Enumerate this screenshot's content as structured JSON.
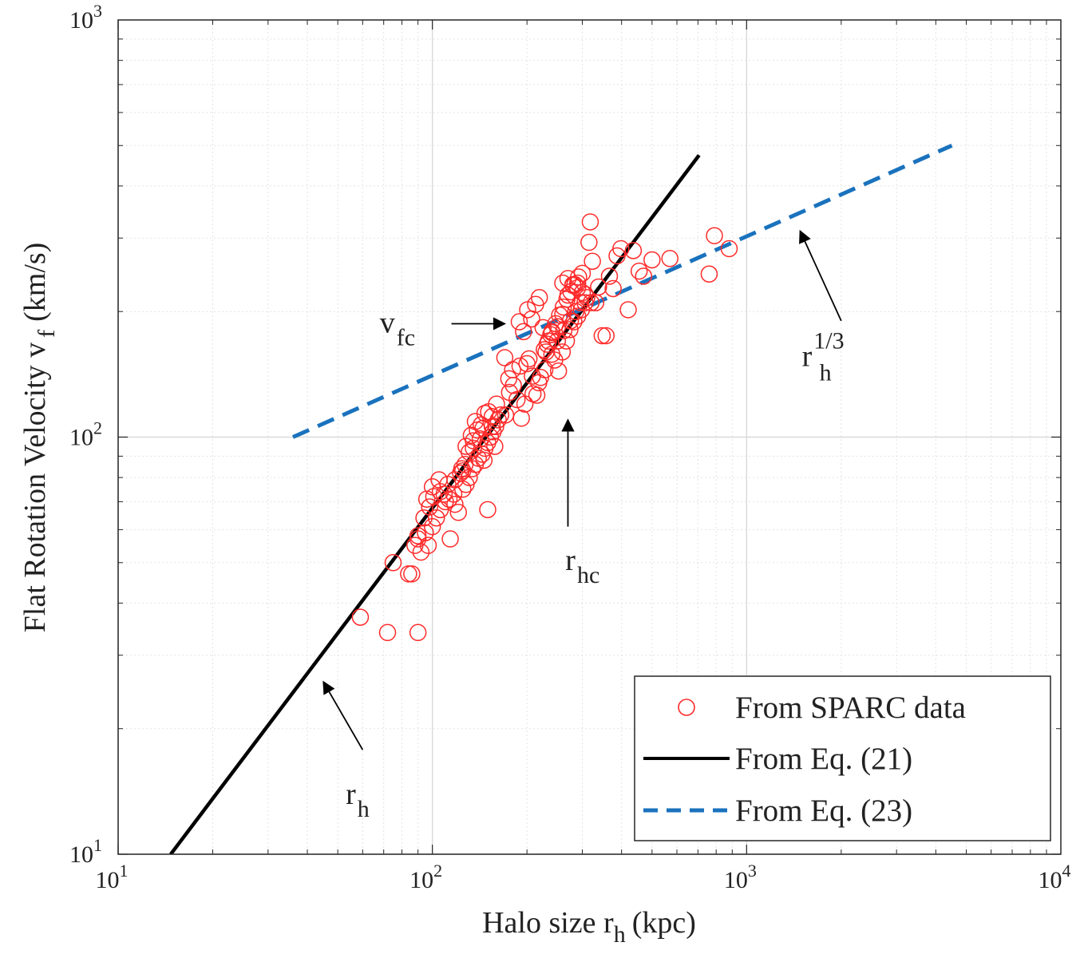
{
  "chart_data": {
    "type": "scatter",
    "xlabel": "Halo size r",
    "xlabel_sub": "h",
    "xlabel_unit": "(kpc)",
    "ylabel": "Flat Rotation Velocity v",
    "ylabel_sub": "f",
    "ylabel_unit": "(km/s)",
    "x_scale": "log",
    "y_scale": "log",
    "xlim": [
      10,
      10000
    ],
    "ylim": [
      10,
      1000
    ],
    "grid": true,
    "legend_position": "bottom-right",
    "x_ticks": [
      {
        "base": "10",
        "exp": "1",
        "value": 10
      },
      {
        "base": "10",
        "exp": "2",
        "value": 100
      },
      {
        "base": "10",
        "exp": "3",
        "value": 1000
      },
      {
        "base": "10",
        "exp": "4",
        "value": 10000
      }
    ],
    "y_ticks": [
      {
        "base": "10",
        "exp": "1",
        "value": 10
      },
      {
        "base": "10",
        "exp": "2",
        "value": 100
      },
      {
        "base": "10",
        "exp": "3",
        "value": 1000
      }
    ],
    "series": [
      {
        "name": "From SPARC data",
        "kind": "scatter",
        "color": "#ff2a2a",
        "points": [
          [
            59,
            37
          ],
          [
            72,
            34
          ],
          [
            90,
            34
          ],
          [
            75,
            50
          ],
          [
            84,
            47
          ],
          [
            86,
            47
          ],
          [
            88,
            55
          ],
          [
            90,
            57
          ],
          [
            92,
            53
          ],
          [
            95,
            59
          ],
          [
            97,
            55
          ],
          [
            100,
            61
          ],
          [
            103,
            64
          ],
          [
            106,
            67
          ],
          [
            110,
            70
          ],
          [
            113,
            71
          ],
          [
            117,
            73
          ],
          [
            121,
            66
          ],
          [
            125,
            75
          ],
          [
            128,
            77
          ],
          [
            131,
            80
          ],
          [
            134,
            84
          ],
          [
            137,
            86
          ],
          [
            140,
            89
          ],
          [
            144,
            91
          ],
          [
            147,
            94
          ],
          [
            150,
            97
          ],
          [
            153,
            100
          ],
          [
            156,
            103
          ],
          [
            159,
            106
          ],
          [
            162,
            110
          ],
          [
            165,
            113
          ],
          [
            96,
            71
          ],
          [
            100,
            76
          ],
          [
            105,
            79
          ],
          [
            109,
            73
          ],
          [
            114,
            57
          ],
          [
            118,
            69
          ],
          [
            123,
            82
          ],
          [
            127,
            86
          ],
          [
            131,
            92
          ],
          [
            135,
            98
          ],
          [
            139,
            104
          ],
          [
            143,
            107
          ],
          [
            147,
            114
          ],
          [
            151,
            115
          ],
          [
            124,
            84
          ],
          [
            128,
            95
          ],
          [
            133,
            101
          ],
          [
            137,
            109
          ],
          [
            142,
            99
          ],
          [
            146,
            88
          ],
          [
            150,
            67
          ],
          [
            155,
            106
          ],
          [
            158,
            95
          ],
          [
            171,
            113
          ],
          [
            176,
            128
          ],
          [
            181,
            133
          ],
          [
            186,
            123
          ],
          [
            192,
            111
          ],
          [
            197,
            120
          ],
          [
            203,
            154
          ],
          [
            209,
            127
          ],
          [
            215,
            126
          ],
          [
            221,
            139
          ],
          [
            227,
            162
          ],
          [
            234,
            170
          ],
          [
            240,
            179
          ],
          [
            247,
            187
          ],
          [
            254,
            196
          ],
          [
            261,
            205
          ],
          [
            268,
            214
          ],
          [
            276,
            223
          ],
          [
            284,
            232
          ],
          [
            292,
            242
          ],
          [
            300,
            247
          ],
          [
            189,
            189
          ],
          [
            195,
            179
          ],
          [
            201,
            202
          ],
          [
            207,
            192
          ],
          [
            213,
            208
          ],
          [
            219,
            216
          ],
          [
            225,
            183
          ],
          [
            232,
            167
          ],
          [
            238,
            176
          ],
          [
            245,
            153
          ],
          [
            252,
            144
          ],
          [
            259,
            160
          ],
          [
            267,
            170
          ],
          [
            274,
            181
          ],
          [
            282,
            189
          ],
          [
            290,
            195
          ],
          [
            298,
            202
          ],
          [
            306,
            210
          ],
          [
            315,
            293
          ],
          [
            318,
            328
          ],
          [
            323,
            264
          ],
          [
            331,
            210
          ],
          [
            338,
            229
          ],
          [
            347,
            175
          ],
          [
            357,
            175
          ],
          [
            366,
            243
          ],
          [
            376,
            227
          ],
          [
            387,
            272
          ],
          [
            398,
            283
          ],
          [
            420,
            202
          ],
          [
            436,
            280
          ],
          [
            455,
            250
          ],
          [
            470,
            243
          ],
          [
            500,
            266
          ],
          [
            570,
            268
          ],
          [
            760,
            246
          ],
          [
            790,
            304
          ],
          [
            880,
            283
          ],
          [
            300,
            222
          ],
          [
            290,
            234
          ],
          [
            280,
            231
          ],
          [
            270,
            219
          ],
          [
            260,
            197
          ],
          [
            250,
            184
          ],
          [
            240,
            178
          ],
          [
            230,
            160
          ],
          [
            170,
            155
          ],
          [
            175,
            138
          ],
          [
            160,
            120
          ],
          [
            155,
            112
          ],
          [
            145,
            105
          ],
          [
            135,
            94
          ],
          [
            125,
            83
          ],
          [
            118,
            79
          ],
          [
            112,
            77
          ],
          [
            106,
            74
          ],
          [
            101,
            72
          ],
          [
            98,
            68
          ],
          [
            94,
            64
          ],
          [
            90,
            58
          ],
          [
            180,
            145
          ],
          [
            190,
            148
          ],
          [
            200,
            150
          ],
          [
            208,
            140
          ],
          [
            218,
            135
          ],
          [
            228,
            145
          ],
          [
            240,
            158
          ],
          [
            250,
            170
          ],
          [
            262,
            180
          ],
          [
            275,
            190
          ],
          [
            286,
            200
          ],
          [
            296,
            210
          ],
          [
            306,
            220
          ],
          [
            260,
            234
          ],
          [
            270,
            240
          ],
          [
            280,
            232
          ],
          [
            290,
            228
          ],
          [
            310,
            216
          ],
          [
            320,
            210
          ]
        ]
      },
      {
        "name": "From Eq. (21)",
        "kind": "line",
        "style": "solid",
        "color": "#000000",
        "x": [
          14.7,
          706
        ],
        "y": [
          10,
          474
        ]
      },
      {
        "name": "From Eq. (23)",
        "kind": "line",
        "style": "dashed",
        "color": "#1a72bd",
        "x": [
          36,
          4500
        ],
        "y": [
          100,
          500
        ]
      }
    ],
    "annotations": [
      {
        "id": "vfc",
        "base": "v",
        "sub": "fc",
        "sup": "",
        "text_x": 68,
        "text_y": 178,
        "arrow_from": [
          115,
          187
        ],
        "arrow_to": [
          170,
          187
        ]
      },
      {
        "id": "rhc",
        "base": "r",
        "sub": "hc",
        "sup": "",
        "text_x": 265,
        "text_y": 48,
        "arrow_from": [
          270,
          61
        ],
        "arrow_to": [
          270,
          110
        ]
      },
      {
        "id": "rh13",
        "base": "r",
        "sub": "h",
        "sup": "1/3",
        "text_x": 1500,
        "text_y": 148,
        "arrow_from": [
          2000,
          190
        ],
        "arrow_to": [
          1480,
          312
        ]
      },
      {
        "id": "rh",
        "base": "r",
        "sub": "h",
        "sup": "",
        "text_x": 53,
        "text_y": 13.2,
        "arrow_from": [
          60,
          17.8
        ],
        "arrow_to": [
          45,
          25.9
        ]
      }
    ]
  }
}
